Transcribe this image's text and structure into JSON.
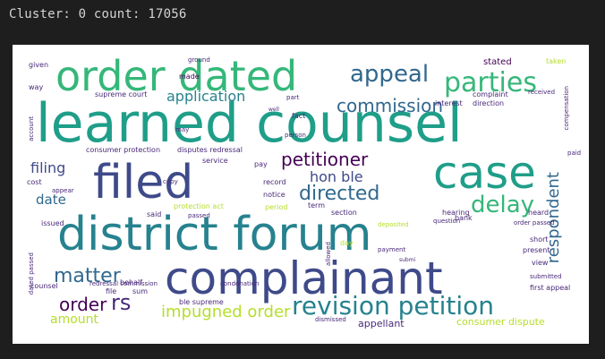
{
  "output": {
    "header_text": "Cluster: 0 count: 17056"
  },
  "wordcloud": {
    "words": [
      "order dated",
      "learned counsel",
      "case",
      "filed",
      "district forum",
      "complainant",
      "revision petition",
      "appeal",
      "parties",
      "commission",
      "application",
      "petitioner",
      "hon ble",
      "directed",
      "delay",
      "respondent",
      "filing",
      "date",
      "matter",
      "order",
      "rs",
      "impugned order",
      "amount",
      "consumer dispute",
      "appellant",
      "stated",
      "taken",
      "made",
      "given",
      "supreme court",
      "complaint",
      "received",
      "interest",
      "direction",
      "compensation",
      "may",
      "part",
      "fact",
      "person",
      "consumer protection",
      "disputes redressal",
      "service",
      "pay",
      "record",
      "notice",
      "term",
      "section",
      "hearing",
      "question",
      "paid",
      "heard",
      "cost",
      "copy",
      "protection act",
      "period",
      "bank",
      "deposited",
      "order passed",
      "issued",
      "said",
      "passed",
      "short",
      "present",
      "day",
      "payment",
      "submitted",
      "first appeal",
      "view",
      "dated passed",
      "account",
      "counsel",
      "behalf",
      "file",
      "sum",
      "ble supreme",
      "dismissed",
      "ground",
      "allowed",
      "well",
      "condonation",
      "appear",
      "redressal commission",
      "submi",
      "way"
    ],
    "colors": {
      "teal": "#1f9e89",
      "green": "#35b779",
      "light_green": "#6ece58",
      "yellow_green": "#b5de2b",
      "yellow": "#fde725",
      "navy": "#3e4a89",
      "purple": "#482878",
      "dark_purple": "#440154",
      "blue": "#31688e",
      "cyan": "#26828e"
    }
  }
}
